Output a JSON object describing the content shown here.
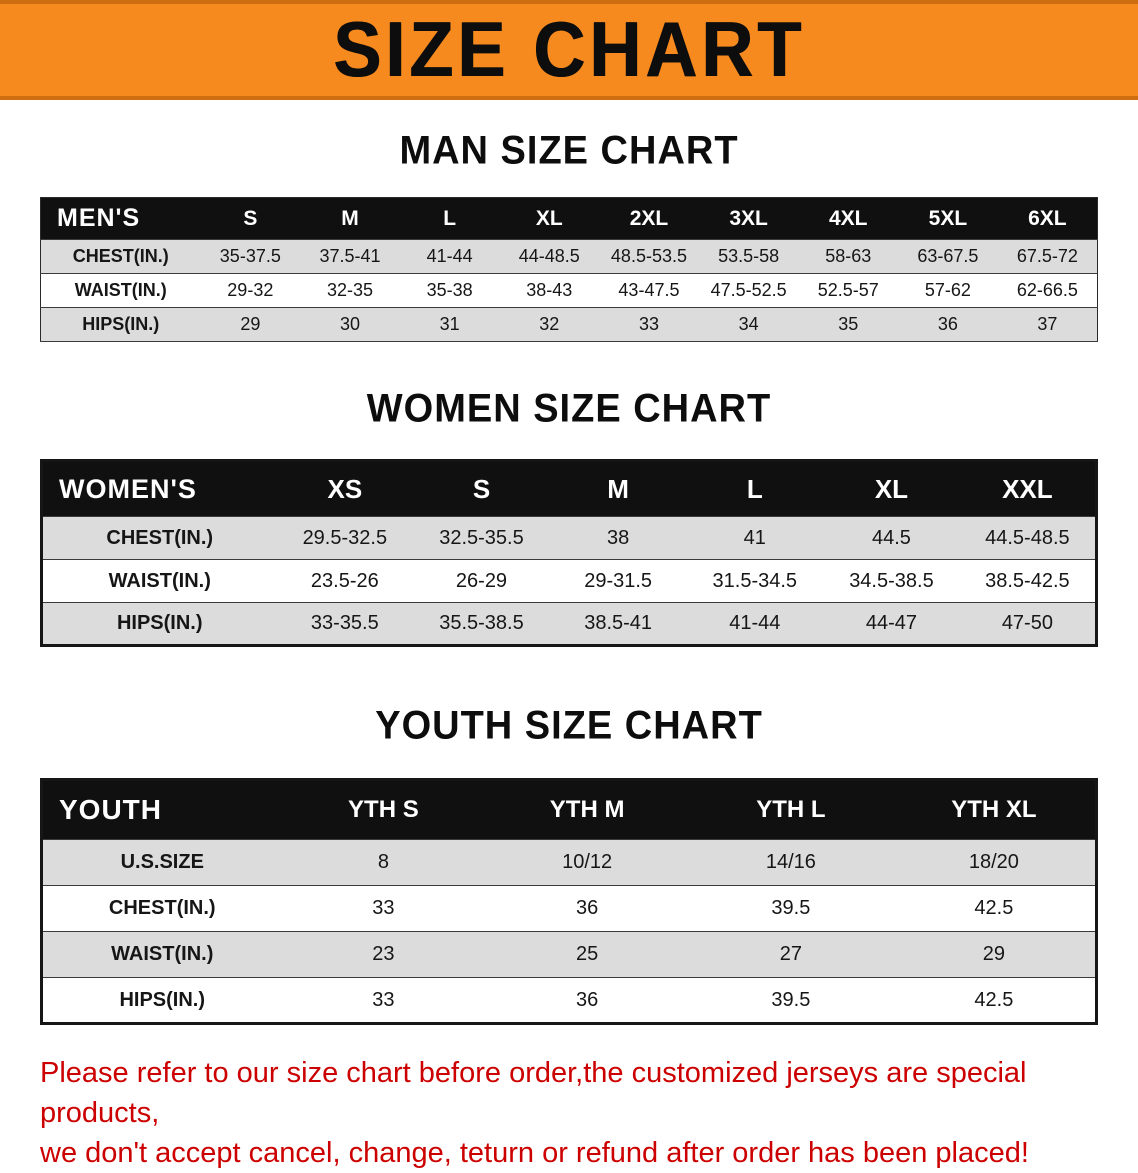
{
  "banner": {
    "title": "SIZE CHART",
    "background_color": "#F68A1E",
    "text_color": "#0D0D0D"
  },
  "sections": [
    {
      "heading": "MAN SIZE CHART",
      "table": {
        "header": [
          "MEN'S",
          "S",
          "M",
          "L",
          "XL",
          "2XL",
          "3XL",
          "4XL",
          "5XL",
          "6XL"
        ],
        "rows": [
          [
            "CHEST(IN.)",
            "35-37.5",
            "37.5-41",
            "41-44",
            "44-48.5",
            "48.5-53.5",
            "53.5-58",
            "58-63",
            "63-67.5",
            "67.5-72"
          ],
          [
            "WAIST(IN.)",
            "29-32",
            "32-35",
            "35-38",
            "38-43",
            "43-47.5",
            "47.5-52.5",
            "52.5-57",
            "57-62",
            "62-66.5"
          ],
          [
            "HIPS(IN.)",
            "29",
            "30",
            "31",
            "32",
            "33",
            "34",
            "35",
            "36",
            "37"
          ]
        ]
      }
    },
    {
      "heading": "WOMEN SIZE CHART",
      "table": {
        "header": [
          "WOMEN'S",
          "XS",
          "S",
          "M",
          "L",
          "XL",
          "XXL"
        ],
        "rows": [
          [
            "CHEST(IN.)",
            "29.5-32.5",
            "32.5-35.5",
            "38",
            "41",
            "44.5",
            "44.5-48.5"
          ],
          [
            "WAIST(IN.)",
            "23.5-26",
            "26-29",
            "29-31.5",
            "31.5-34.5",
            "34.5-38.5",
            "38.5-42.5"
          ],
          [
            "HIPS(IN.)",
            "33-35.5",
            "35.5-38.5",
            "38.5-41",
            "41-44",
            "44-47",
            "47-50"
          ]
        ]
      }
    },
    {
      "heading": "YOUTH SIZE CHART",
      "table": {
        "header": [
          "YOUTH",
          "YTH S",
          "YTH M",
          "YTH L",
          "YTH XL"
        ],
        "rows": [
          [
            "U.S.SIZE",
            "8",
            "10/12",
            "14/16",
            "18/20"
          ],
          [
            "CHEST(IN.)",
            "33",
            "36",
            "39.5",
            "42.5"
          ],
          [
            "WAIST(IN.)",
            "23",
            "25",
            "27",
            "29"
          ],
          [
            "HIPS(IN.)",
            "33",
            "36",
            "39.5",
            "42.5"
          ]
        ]
      }
    }
  ],
  "footer_note": {
    "line1": "Please refer to our size chart before order,the customized jerseys are special products,",
    "line2": "we don't accept cancel, change, teturn or refund after order has been placed!",
    "color": "#CC0000"
  }
}
